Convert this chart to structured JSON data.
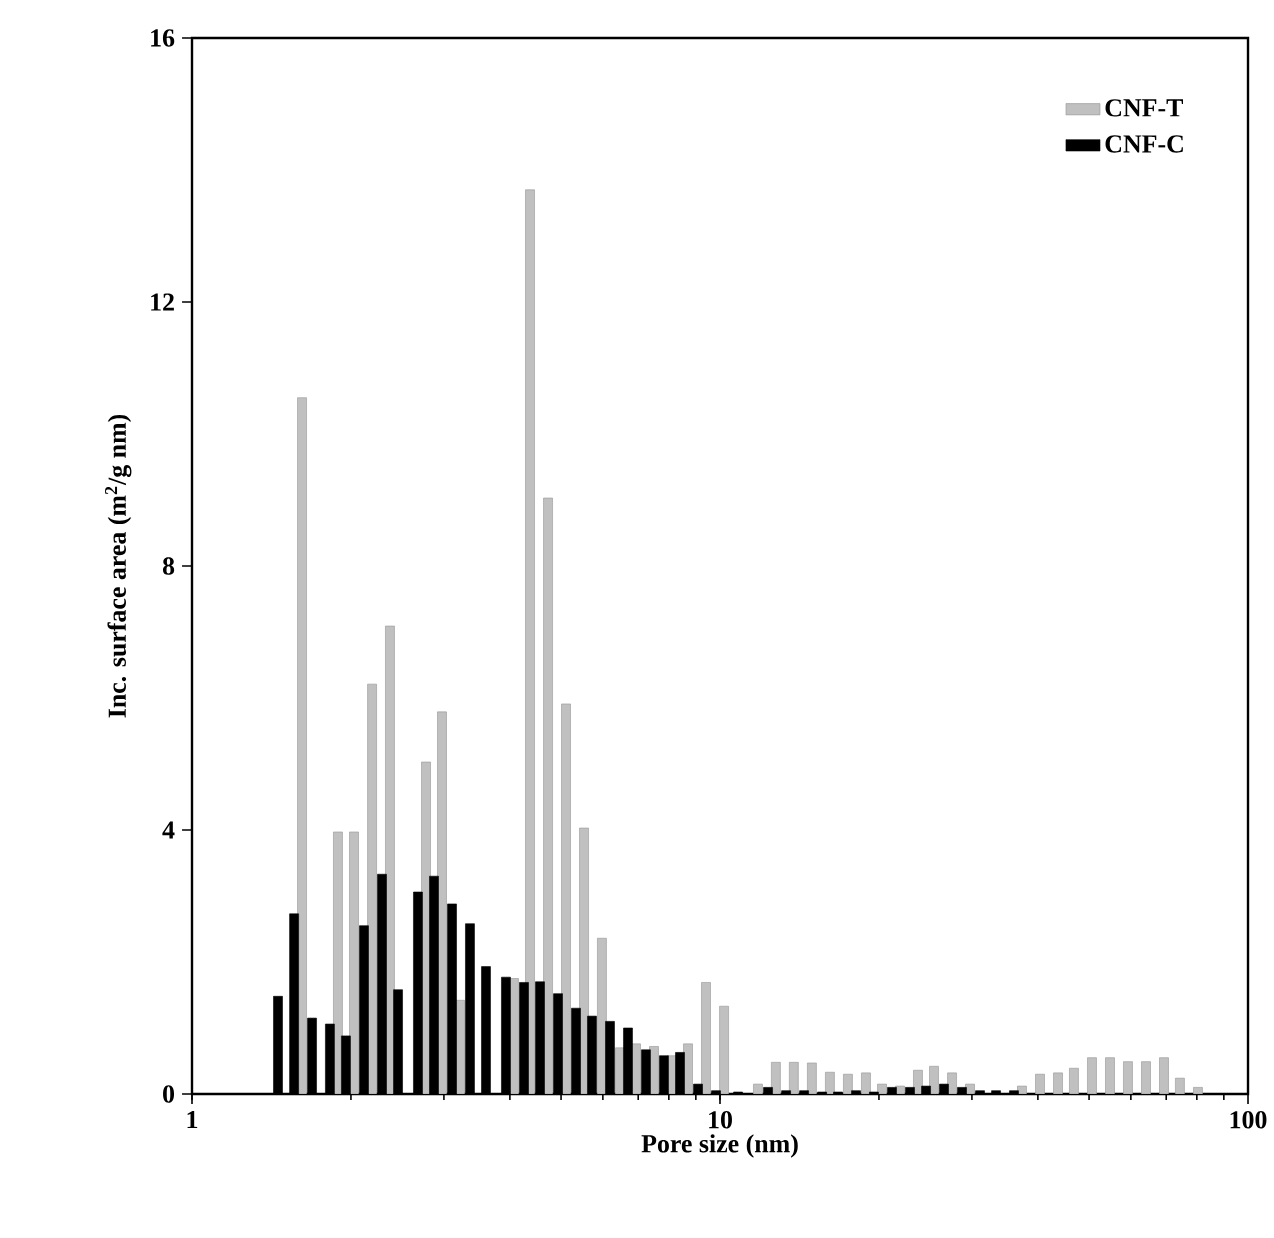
{
  "chart_data": {
    "type": "bar",
    "xlabel": "Pore size (nm)",
    "ylabel": "Inc. surface area (m$^{2}$/g nm)",
    "log": "x",
    "xlim": [
      1,
      100
    ],
    "xticks": [
      1,
      10,
      100
    ],
    "ylim": [
      0,
      16
    ],
    "yticks": [
      0,
      4,
      8,
      12,
      16
    ],
    "legend": "top right",
    "grid": false,
    "series": [
      {
        "name": "CNF-T",
        "color": "#c0c0c0",
        "x": [
          1.616,
          1.89,
          2.027,
          2.193,
          2.371,
          2.775,
          2.975,
          3.218,
          4.072,
          4.367,
          4.724,
          5.109,
          5.527,
          5.976,
          6.465,
          6.934,
          7.499,
          8.111,
          8.698,
          9.408,
          10.18,
          11.8,
          12.76,
          13.8,
          14.93,
          16.15,
          17.47,
          18.9,
          20.27,
          21.93,
          23.71,
          25.43,
          27.51,
          29.75,
          37.32,
          40.37,
          43.67,
          46.81,
          50.64,
          54.78,
          59.25,
          64.09,
          69.33,
          74.32,
          80.39
        ],
        "values": [
          10.55,
          3.97,
          3.97,
          6.21,
          7.09,
          5.03,
          5.79,
          1.42,
          1.75,
          13.7,
          9.03,
          5.91,
          4.03,
          2.36,
          0.7,
          0.76,
          0.72,
          0.58,
          0.76,
          1.69,
          1.33,
          0.15,
          0.48,
          0.48,
          0.47,
          0.33,
          0.3,
          0.32,
          0.15,
          0.12,
          0.36,
          0.42,
          0.32,
          0.15,
          0.12,
          0.3,
          0.32,
          0.39,
          0.55,
          0.55,
          0.49,
          0.49,
          0.55,
          0.24,
          0.1
        ]
      },
      {
        "name": "CNF-C",
        "color": "#000000",
        "x": [
          1.455,
          1.561,
          1.688,
          1.825,
          1.957,
          2.117,
          2.29,
          2.456,
          2.679,
          2.873,
          3.108,
          3.361,
          3.604,
          3.932,
          4.254,
          4.561,
          4.934,
          5.337,
          5.722,
          6.189,
          6.695,
          7.24,
          7.832,
          8.4,
          9.086,
          9.826,
          10.82,
          12.33,
          13.34,
          14.43,
          15.61,
          16.73,
          18.1,
          19.57,
          21.17,
          22.9,
          24.56,
          26.56,
          28.73,
          31.08,
          33.33,
          36.04
        ],
        "values": [
          1.48,
          2.73,
          1.15,
          1.06,
          0.88,
          2.55,
          3.33,
          1.58,
          3.06,
          3.3,
          2.88,
          2.58,
          1.93,
          1.77,
          1.69,
          1.7,
          1.52,
          1.3,
          1.18,
          1.1,
          1.0,
          0.67,
          0.58,
          0.63,
          0.15,
          0.05,
          0.03,
          0.1,
          0.05,
          0.05,
          0.03,
          0.03,
          0.05,
          0.03,
          0.1,
          0.1,
          0.12,
          0.15,
          0.1,
          0.05,
          0.05,
          0.05
        ]
      }
    ]
  }
}
